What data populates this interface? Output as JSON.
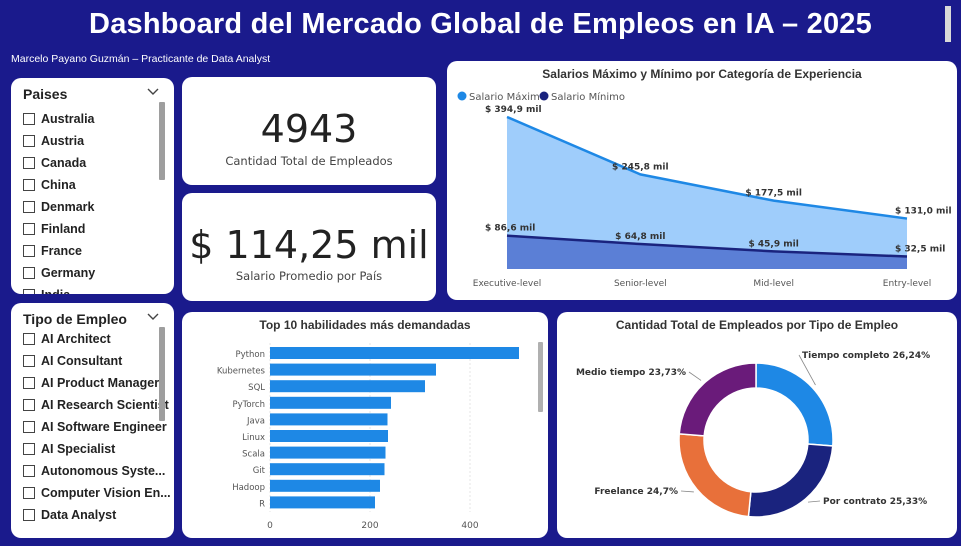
{
  "header": {
    "title": "Dashboard del Mercado Global de Empleos en IA – 2025",
    "subtitle": "Marcelo Payano Guzmán – Practicante de Data Analyst"
  },
  "countries_slicer": {
    "title": "Paises",
    "items": [
      "Australia",
      "Austria",
      "Canada",
      "China",
      "Denmark",
      "Finland",
      "France",
      "Germany",
      "India"
    ]
  },
  "employment_slicer": {
    "title": "Tipo de Empleo",
    "items": [
      "AI Architect",
      "AI Consultant",
      "AI Product Manager",
      "AI Research Scientist",
      "AI Software Engineer",
      "AI Specialist",
      "Autonomous Syste...",
      "Computer Vision En...",
      "Data Analyst"
    ]
  },
  "kpis": {
    "total_employees": {
      "value": "4943",
      "label": "Cantidad Total de Empleados"
    },
    "avg_salary": {
      "value": "$ 114,25 mil",
      "label": "Salario Promedio por País"
    }
  },
  "colors": {
    "background": "#1a1a8c",
    "max_salary": "#1e88e5",
    "max_fill": "#9fcdfb",
    "min_salary": "#1a237e",
    "min_fill": "#5b7fd6",
    "bar": "#1e88e5",
    "donut": [
      "#1e88e5",
      "#1a237e",
      "#e8703a",
      "#6a1b7a"
    ]
  },
  "chart_data": [
    {
      "type": "area",
      "title": "Salarios Máximo y Mínimo por Categoría de Experiencia",
      "legend_position": "top-left",
      "categories": [
        "Executive-level",
        "Senior-level",
        "Mid-level",
        "Entry-level"
      ],
      "series": [
        {
          "name": "Salario Máximo",
          "values": [
            394.9,
            245.8,
            177.5,
            131.0
          ],
          "labels": [
            "$ 394,9 mil",
            "$ 245,8 mil",
            "$ 177,5 mil",
            "$ 131,0 mil"
          ]
        },
        {
          "name": "Salario Mínimo",
          "values": [
            86.6,
            64.8,
            45.9,
            32.5
          ],
          "labels": [
            "$ 86,6 mil",
            "$ 64,8 mil",
            "$ 45,9 mil",
            "$ 32,5 mil"
          ]
        }
      ],
      "ylim": [
        0,
        400
      ]
    },
    {
      "type": "bar",
      "orientation": "horizontal",
      "title": "Top 10 habilidades más demandadas",
      "categories": [
        "Python",
        "Kubernetes",
        "SQL",
        "PyTorch",
        "Java",
        "Linux",
        "Scala",
        "Git",
        "Hadoop",
        "R"
      ],
      "values": [
        498,
        332,
        310,
        242,
        235,
        236,
        231,
        229,
        220,
        210
      ],
      "xticks": [
        "0",
        "200",
        "400"
      ],
      "xlim": [
        0,
        520
      ]
    },
    {
      "type": "pie",
      "donut": true,
      "title": "Cantidad Total de Empleados por Tipo de Empleo",
      "slices": [
        {
          "name": "Tiempo completo",
          "value": 26.24,
          "label": "Tiempo completo 26,24%"
        },
        {
          "name": "Por contrato",
          "value": 25.33,
          "label": "Por contrato 25,33%"
        },
        {
          "name": "Freelance",
          "value": 24.7,
          "label": "Freelance 24,7%"
        },
        {
          "name": "Medio tiempo",
          "value": 23.73,
          "label": "Medio tiempo 23,73%"
        }
      ]
    }
  ]
}
